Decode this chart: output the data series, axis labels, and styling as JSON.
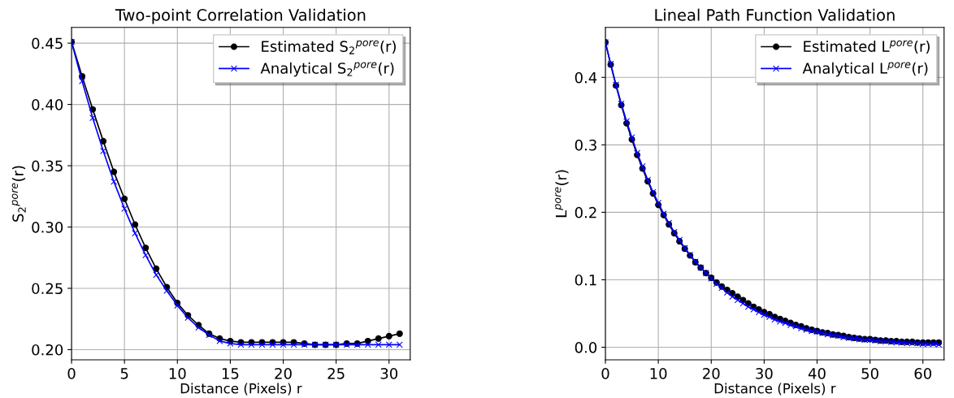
{
  "chart_data": [
    {
      "type": "line",
      "title": "Two-point Correlation Validation",
      "xlabel": "Distance (Pixels) r",
      "ylabel": "S$_{2}$$^{pore}$(r)",
      "x": [
        0,
        1,
        2,
        3,
        4,
        5,
        6,
        7,
        8,
        9,
        10,
        11,
        12,
        13,
        14,
        15,
        16,
        17,
        18,
        19,
        20,
        21,
        22,
        23,
        24,
        25,
        26,
        27,
        28,
        29,
        30,
        31
      ],
      "series": [
        {
          "name": "Estimated S$_{2}$$^{pore}$(r)",
          "color": "#000000",
          "marker": "circle",
          "values": [
            0.451,
            0.423,
            0.396,
            0.37,
            0.345,
            0.323,
            0.302,
            0.283,
            0.266,
            0.251,
            0.238,
            0.228,
            0.22,
            0.213,
            0.209,
            0.207,
            0.206,
            0.206,
            0.206,
            0.206,
            0.206,
            0.206,
            0.205,
            0.204,
            0.204,
            0.204,
            0.205,
            0.205,
            0.207,
            0.209,
            0.211,
            0.213
          ]
        },
        {
          "name": "Analytical S$_{2}$$^{pore}$(r)",
          "color": "#0000ff",
          "marker": "cross",
          "values": [
            0.451,
            0.419,
            0.389,
            0.362,
            0.337,
            0.315,
            0.295,
            0.277,
            0.261,
            0.248,
            0.236,
            0.226,
            0.218,
            0.212,
            0.207,
            0.205,
            0.204,
            0.204,
            0.204,
            0.204,
            0.204,
            0.204,
            0.204,
            0.204,
            0.204,
            0.204,
            0.204,
            0.204,
            0.204,
            0.204,
            0.204,
            0.204
          ]
        }
      ],
      "xlim": [
        0,
        32
      ],
      "xticks": [
        0,
        5,
        10,
        15,
        20,
        25,
        30
      ],
      "ylim": [
        0.1917,
        0.4628
      ],
      "yticks": [
        {
          "value": 0.2,
          "label": "0.20"
        },
        {
          "value": 0.25,
          "label": "0.25"
        },
        {
          "value": 0.3,
          "label": "0.30"
        },
        {
          "value": 0.35,
          "label": "0.35"
        },
        {
          "value": 0.4,
          "label": "0.40"
        },
        {
          "value": 0.45,
          "label": "0.45"
        }
      ],
      "grid": true,
      "legend": "top right"
    },
    {
      "type": "line",
      "title": "Lineal Path Function Validation",
      "xlabel": "Distance (Pixels) r",
      "ylabel": "L$^{pore}$(r)",
      "x": [
        0,
        1,
        2,
        3,
        4,
        5,
        6,
        7,
        8,
        9,
        10,
        11,
        12,
        13,
        14,
        15,
        16,
        17,
        18,
        19,
        20,
        21,
        22,
        23,
        24,
        25,
        26,
        27,
        28,
        29,
        30,
        31,
        32,
        33,
        34,
        35,
        36,
        37,
        38,
        39,
        40,
        41,
        42,
        43,
        44,
        45,
        46,
        47,
        48,
        49,
        50,
        51,
        52,
        53,
        54,
        55,
        56,
        57,
        58,
        59,
        60,
        61,
        62,
        63
      ],
      "series": [
        {
          "name": "Estimated L$^{pore}$(r)",
          "color": "#000000",
          "marker": "circle",
          "values": [
            0.452,
            0.419,
            0.388,
            0.359,
            0.332,
            0.308,
            0.285,
            0.265,
            0.246,
            0.228,
            0.211,
            0.196,
            0.182,
            0.169,
            0.157,
            0.146,
            0.136,
            0.126,
            0.118,
            0.11,
            0.103,
            0.096,
            0.09,
            0.085,
            0.08,
            0.075,
            0.07,
            0.065,
            0.06,
            0.056,
            0.052,
            0.049,
            0.045,
            0.042,
            0.039,
            0.036,
            0.033,
            0.031,
            0.028,
            0.026,
            0.024,
            0.022,
            0.021,
            0.019,
            0.018,
            0.017,
            0.015,
            0.014,
            0.013,
            0.012,
            0.012,
            0.011,
            0.01,
            0.01,
            0.009,
            0.009,
            0.008,
            0.008,
            0.008,
            0.007,
            0.007,
            0.007,
            0.007,
            0.007
          ]
        },
        {
          "name": "Analytical L$^{pore}$(r)",
          "color": "#0000ff",
          "marker": "cross",
          "values": [
            0.452,
            0.42,
            0.389,
            0.361,
            0.335,
            0.311,
            0.288,
            0.268,
            0.248,
            0.23,
            0.214,
            0.198,
            0.184,
            0.171,
            0.159,
            0.147,
            0.137,
            0.127,
            0.118,
            0.11,
            0.102,
            0.094,
            0.088,
            0.081,
            0.075,
            0.07,
            0.065,
            0.06,
            0.056,
            0.052,
            0.048,
            0.045,
            0.041,
            0.038,
            0.036,
            0.033,
            0.031,
            0.028,
            0.026,
            0.024,
            0.023,
            0.021,
            0.019,
            0.018,
            0.017,
            0.015,
            0.014,
            0.013,
            0.012,
            0.011,
            0.011,
            0.01,
            0.009,
            0.009,
            0.008,
            0.007,
            0.007,
            0.006,
            0.006,
            0.006,
            0.005,
            0.005,
            0.005,
            0.004
          ]
        }
      ],
      "xlim": [
        0,
        64
      ],
      "xticks": [
        0,
        10,
        20,
        30,
        40,
        50,
        60
      ],
      "ylim": [
        -0.0186,
        0.474
      ],
      "yticks": [
        {
          "value": 0,
          "label": "0.0"
        },
        {
          "value": 0.1,
          "label": "0.1"
        },
        {
          "value": 0.2,
          "label": "0.2"
        },
        {
          "value": 0.3,
          "label": "0.3"
        },
        {
          "value": 0.4,
          "label": "0.4"
        }
      ],
      "grid": true,
      "legend": "top right"
    }
  ]
}
